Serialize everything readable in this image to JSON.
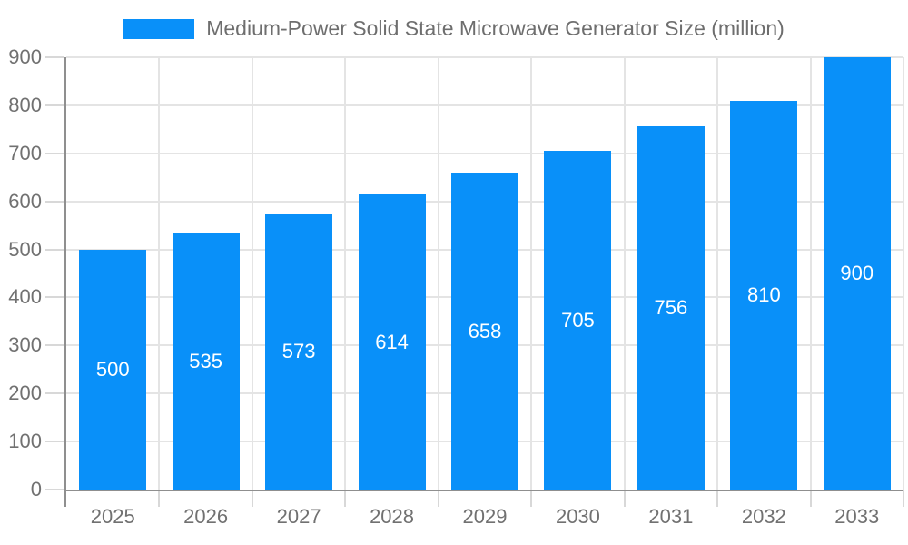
{
  "chart_data": {
    "type": "bar",
    "title": "Medium-Power Solid State Microwave Generator Size (million)",
    "series_name": "Medium-Power Solid State Microwave Generator Size (million)",
    "categories": [
      "2025",
      "2026",
      "2027",
      "2028",
      "2029",
      "2030",
      "2031",
      "2032",
      "2033"
    ],
    "values": [
      500,
      535,
      573,
      614,
      658,
      705,
      756,
      810,
      900
    ],
    "xlabel": "",
    "ylabel": "",
    "ylim": [
      0,
      900
    ],
    "y_ticks": [
      0,
      100,
      200,
      300,
      400,
      500,
      600,
      700,
      800,
      900
    ],
    "grid": true,
    "legend_position": "top-center",
    "value_labels_position": "inside-middle",
    "colors": {
      "bar": "#0990f9",
      "bar_value_text": "#ffffff",
      "axis_text": "#717171",
      "legend_text": "#6e6e6e",
      "axis_line": "#8f8f8f",
      "gridline": "#e4e4e4",
      "tick": "#d8d8d8",
      "background": "#ffffff"
    }
  }
}
